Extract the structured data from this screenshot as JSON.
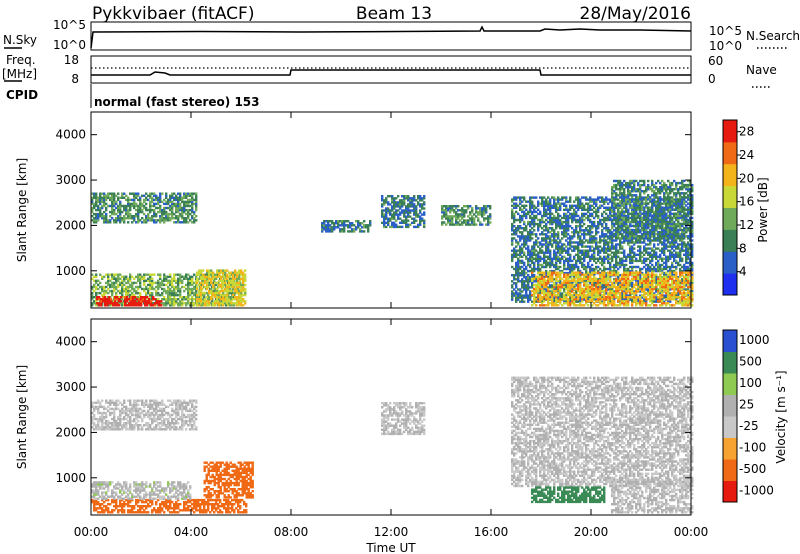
{
  "header": {
    "station": "Pykkvibaer (fitACF)",
    "beam": "Beam 13",
    "date": "28/May/2016"
  },
  "top_panels": {
    "nsky_label": "N.Sky",
    "nsky_ticks": [
      "10^5",
      "10^0"
    ],
    "nsearch_label": "N.Search",
    "nsearch_ticks": [
      "10^5",
      "10^0"
    ],
    "freq_label": "Freq.",
    "freq_unit": "[MHz]",
    "freq_ticks": [
      "18",
      "8"
    ],
    "nave_label": "Nave",
    "nave_ticks": [
      "60",
      "0"
    ],
    "cpid_label": "CPID",
    "cpid_text": "normal (fast stereo) 153"
  },
  "colors": {
    "power": [
      "#1e2ff0",
      "#2a5fc8",
      "#3a7f55",
      "#6faa5a",
      "#c8d836",
      "#f2b41a",
      "#f06a16",
      "#e61a0e"
    ],
    "velocity": [
      "#e61a0e",
      "#f06a16",
      "#f7a331",
      "#c8c8c8",
      "#b0b0b0",
      "#8fca52",
      "#3a8a55",
      "#2a4fd0"
    ]
  },
  "chart_data": [
    {
      "type": "heatmap",
      "quantity": "power",
      "ylabel": "Slant Range [km]",
      "ylim": [
        180,
        4500
      ],
      "yticks": [
        "1000",
        "2000",
        "3000",
        "4000"
      ],
      "xlim": [
        "00:00",
        "24:00"
      ],
      "colorbar_label": "Power [dB]",
      "colorbar_ticks": [
        "4",
        "8",
        "12",
        "16",
        "20",
        "24",
        "28"
      ],
      "colorbar_range": [
        0,
        30
      ],
      "regions": [
        {
          "t": [
            0.0,
            4.2
          ],
          "r": [
            2050,
            2700
          ],
          "level": 10
        },
        {
          "t": [
            0.0,
            6.0
          ],
          "r": [
            220,
            900
          ],
          "level": 13
        },
        {
          "t": [
            0.2,
            2.8
          ],
          "r": [
            220,
            420
          ],
          "level": 29
        },
        {
          "t": [
            4.2,
            6.2
          ],
          "r": [
            220,
            1000
          ],
          "level": 18
        },
        {
          "t": [
            9.2,
            11.2
          ],
          "r": [
            1850,
            2100
          ],
          "level": 8
        },
        {
          "t": [
            11.6,
            13.3
          ],
          "r": [
            1950,
            2650
          ],
          "level": 8
        },
        {
          "t": [
            14.0,
            16.0
          ],
          "r": [
            2000,
            2450
          ],
          "level": 10
        },
        {
          "t": [
            16.8,
            24.0
          ],
          "r": [
            300,
            2600
          ],
          "level": 8
        },
        {
          "t": [
            17.6,
            24.0
          ],
          "r": [
            220,
            950
          ],
          "level": 20
        },
        {
          "t": [
            20.8,
            24.0
          ],
          "r": [
            1700,
            3000
          ],
          "level": 9
        }
      ]
    },
    {
      "type": "heatmap",
      "quantity": "velocity",
      "ylabel": "Slant Range [km]",
      "ylim": [
        180,
        4500
      ],
      "yticks": [
        "1000",
        "2000",
        "3000",
        "4000"
      ],
      "xlim": [
        "00:00",
        "24:00"
      ],
      "xlabel": "Time UT",
      "xticks": [
        "00:00",
        "04:00",
        "08:00",
        "12:00",
        "16:00",
        "20:00",
        "00:00"
      ],
      "colorbar_label": "Velocity [m s⁻¹]",
      "colorbar_ticks": [
        "1000",
        "500",
        "100",
        "25",
        "-25",
        "-100",
        "-500",
        "-1000"
      ],
      "colorbar_range": [
        -1000,
        1000
      ],
      "regions": [
        {
          "t": [
            0.0,
            4.2
          ],
          "r": [
            2050,
            2700
          ],
          "v": 0
        },
        {
          "t": [
            0.0,
            6.2
          ],
          "r": [
            220,
            520
          ],
          "v": -250
        },
        {
          "t": [
            0.0,
            4.0
          ],
          "r": [
            520,
            900
          ],
          "v": 10
        },
        {
          "t": [
            4.5,
            6.5
          ],
          "r": [
            550,
            1350
          ],
          "v": -300
        },
        {
          "t": [
            11.6,
            13.3
          ],
          "r": [
            1950,
            2650
          ],
          "v": 0
        },
        {
          "t": [
            16.8,
            24.0
          ],
          "r": [
            800,
            3200
          ],
          "v": 0
        },
        {
          "t": [
            17.6,
            20.5
          ],
          "r": [
            450,
            800
          ],
          "v": 150
        },
        {
          "t": [
            20.8,
            24.0
          ],
          "r": [
            220,
            950
          ],
          "v": 0
        }
      ]
    }
  ]
}
